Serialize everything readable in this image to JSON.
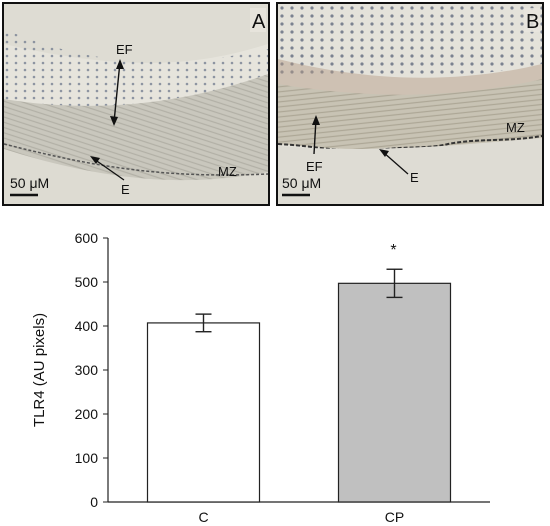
{
  "panels": [
    {
      "letter": "A",
      "labels": {
        "ef": "EF",
        "mz": "MZ",
        "e": "E"
      },
      "scale_bar": "50 μM"
    },
    {
      "letter": "B",
      "labels": {
        "ef": "EF",
        "mz": "MZ",
        "e": "E"
      },
      "scale_bar": "50 μM"
    }
  ],
  "chart_data": {
    "type": "bar",
    "categories": [
      "C",
      "CP"
    ],
    "values": [
      407,
      497
    ],
    "errors": [
      20,
      32
    ],
    "bar_colors": [
      "#ffffff",
      "#c0c0c0"
    ],
    "significance": [
      "",
      "*"
    ],
    "ylabel": "TLR4 (AU pixels)",
    "xlabel": "",
    "ylim": [
      0,
      600
    ],
    "yticks": [
      0,
      100,
      200,
      300,
      400,
      500,
      600
    ],
    "grid": false
  }
}
